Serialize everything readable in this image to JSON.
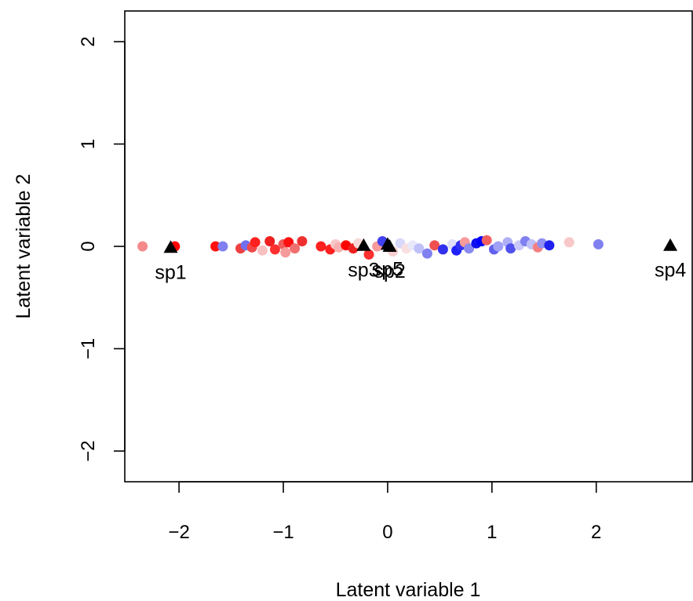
{
  "chart_data": {
    "type": "scatter",
    "title": "",
    "xlabel": "Latent variable 1",
    "ylabel": "Latent variable 2",
    "xlim": [
      -2.52,
      2.92
    ],
    "ylim": [
      -2.3,
      2.3
    ],
    "x_ticks": [
      -2,
      -1,
      0,
      1,
      2
    ],
    "y_ticks": [
      -2,
      -1,
      0,
      1,
      2
    ],
    "x_tick_labels": [
      "−2",
      "−1",
      "0",
      "1",
      "2"
    ],
    "y_tick_labels": [
      "−2",
      "−1",
      "0",
      "1",
      "2"
    ],
    "grid": false,
    "legend": "none",
    "site_points": [
      {
        "x": -2.35,
        "y": 0.0,
        "color": "#f48a8a"
      },
      {
        "x": -2.04,
        "y": 0.0,
        "color": "#ff0000"
      },
      {
        "x": -1.65,
        "y": 0.0,
        "color": "#ff1010"
      },
      {
        "x": -1.58,
        "y": 0.0,
        "color": "#8080f0"
      },
      {
        "x": -1.41,
        "y": -0.02,
        "color": "#ee4040"
      },
      {
        "x": -1.36,
        "y": 0.01,
        "color": "#7070ee"
      },
      {
        "x": -1.3,
        "y": -0.01,
        "color": "#f04848"
      },
      {
        "x": -1.27,
        "y": 0.04,
        "color": "#ff2020"
      },
      {
        "x": -1.2,
        "y": -0.04,
        "color": "#f8c0c0"
      },
      {
        "x": -1.13,
        "y": 0.05,
        "color": "#ee2020"
      },
      {
        "x": -1.08,
        "y": -0.03,
        "color": "#ff3030"
      },
      {
        "x": -1.0,
        "y": 0.02,
        "color": "#f05a5a"
      },
      {
        "x": -0.98,
        "y": -0.06,
        "color": "#f59a9a"
      },
      {
        "x": -0.95,
        "y": 0.04,
        "color": "#ff1010"
      },
      {
        "x": -0.89,
        "y": -0.02,
        "color": "#f07070"
      },
      {
        "x": -0.82,
        "y": 0.05,
        "color": "#ee3030"
      },
      {
        "x": -0.64,
        "y": 0.0,
        "color": "#ff2020"
      },
      {
        "x": -0.55,
        "y": -0.03,
        "color": "#ff2020"
      },
      {
        "x": -0.5,
        "y": 0.02,
        "color": "#f8c8c8"
      },
      {
        "x": -0.47,
        "y": -0.01,
        "color": "#f7b0b0"
      },
      {
        "x": -0.4,
        "y": 0.01,
        "color": "#ff0000"
      },
      {
        "x": -0.33,
        "y": -0.02,
        "color": "#ee2020"
      },
      {
        "x": -0.28,
        "y": 0.03,
        "color": "#f8d8d8"
      },
      {
        "x": -0.18,
        "y": -0.08,
        "color": "#ff3030"
      },
      {
        "x": -0.1,
        "y": 0.0,
        "color": "#f89a9a"
      },
      {
        "x": -0.05,
        "y": 0.05,
        "color": "#4040ee"
      },
      {
        "x": 0.05,
        "y": -0.05,
        "color": "#f8d0d0"
      },
      {
        "x": 0.12,
        "y": 0.03,
        "color": "#d8d8fb"
      },
      {
        "x": 0.18,
        "y": -0.02,
        "color": "#f8e0e0"
      },
      {
        "x": 0.24,
        "y": 0.01,
        "color": "#e8e8fb"
      },
      {
        "x": 0.3,
        "y": -0.02,
        "color": "#c0c0f8"
      },
      {
        "x": 0.38,
        "y": -0.07,
        "color": "#8080f0"
      },
      {
        "x": 0.45,
        "y": 0.01,
        "color": "#f05050"
      },
      {
        "x": 0.53,
        "y": -0.03,
        "color": "#3030ee"
      },
      {
        "x": 0.62,
        "y": 0.02,
        "color": "#e0e0fa"
      },
      {
        "x": 0.66,
        "y": -0.04,
        "color": "#2020ff"
      },
      {
        "x": 0.7,
        "y": 0.01,
        "color": "#3030ee"
      },
      {
        "x": 0.74,
        "y": 0.04,
        "color": "#f89a9a"
      },
      {
        "x": 0.78,
        "y": -0.02,
        "color": "#8a8af0"
      },
      {
        "x": 0.85,
        "y": 0.03,
        "color": "#1010ee"
      },
      {
        "x": 0.9,
        "y": 0.05,
        "color": "#0000ff"
      },
      {
        "x": 0.95,
        "y": 0.06,
        "color": "#f06060"
      },
      {
        "x": 1.02,
        "y": -0.03,
        "color": "#6060ee"
      },
      {
        "x": 1.06,
        "y": 0.0,
        "color": "#a0a0f5"
      },
      {
        "x": 1.15,
        "y": 0.04,
        "color": "#b0b0f6"
      },
      {
        "x": 1.18,
        "y": -0.02,
        "color": "#5050ee"
      },
      {
        "x": 1.26,
        "y": 0.01,
        "color": "#c8c8fa"
      },
      {
        "x": 1.32,
        "y": 0.05,
        "color": "#8080f0"
      },
      {
        "x": 1.38,
        "y": 0.02,
        "color": "#c0c0f8"
      },
      {
        "x": 1.44,
        "y": -0.01,
        "color": "#f28080"
      },
      {
        "x": 1.48,
        "y": 0.03,
        "color": "#9090f2"
      },
      {
        "x": 1.55,
        "y": 0.01,
        "color": "#2020ee"
      },
      {
        "x": 1.74,
        "y": 0.04,
        "color": "#f8c8c8"
      },
      {
        "x": 2.02,
        "y": 0.02,
        "color": "#8080f0"
      }
    ],
    "species": [
      {
        "label": "sp1",
        "x": -2.08,
        "y": -0.01
      },
      {
        "label": "sp3",
        "x": -0.23,
        "y": 0.01
      },
      {
        "label": "sp5",
        "x": 0.0,
        "y": 0.02
      },
      {
        "label": "sp2",
        "x": 0.02,
        "y": 0.0
      },
      {
        "label": "sp4",
        "x": 2.71,
        "y": 0.01
      }
    ],
    "colors": {
      "axis": "#000000",
      "species_marker": "#000000"
    }
  }
}
